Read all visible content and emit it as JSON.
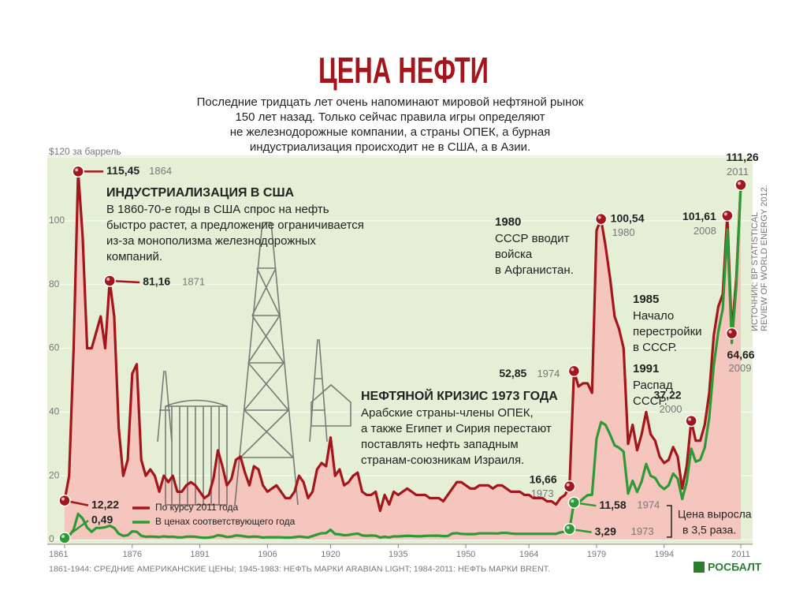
{
  "chart_data": {
    "type": "line",
    "title": "ЦЕНА НЕФТИ",
    "subtitle": [
      "Последние тридцать лет очень напоминают мировой нефтяной рынок",
      "150 лет назад. Только сейчас правила игры определяют",
      "не железнодорожные компании, а страны ОПЕК, а бурная",
      "индустриализация происходит не в США, а в Азии."
    ],
    "xlim": [
      1861,
      2011
    ],
    "xticks": [
      1861,
      1876,
      1891,
      1906,
      1920,
      1935,
      1950,
      1964,
      1979,
      1994,
      2011
    ],
    "ylim": [
      0,
      120
    ],
    "yticks": [
      0,
      20,
      40,
      60,
      80,
      100,
      {
        "value": 120,
        "label": "$120 за баррель"
      }
    ],
    "grid": true,
    "x": [
      1861,
      1862,
      1863,
      1864,
      1865,
      1866,
      1867,
      1868,
      1869,
      1870,
      1871,
      1872,
      1873,
      1874,
      1875,
      1876,
      1877,
      1878,
      1879,
      1880,
      1881,
      1882,
      1883,
      1884,
      1885,
      1886,
      1887,
      1888,
      1889,
      1890,
      1891,
      1892,
      1893,
      1894,
      1895,
      1896,
      1897,
      1898,
      1899,
      1900,
      1901,
      1902,
      1903,
      1904,
      1905,
      1906,
      1907,
      1908,
      1909,
      1910,
      1911,
      1912,
      1913,
      1914,
      1915,
      1916,
      1917,
      1918,
      1919,
      1920,
      1921,
      1922,
      1923,
      1924,
      1925,
      1926,
      1927,
      1928,
      1929,
      1930,
      1931,
      1932,
      1933,
      1934,
      1935,
      1936,
      1937,
      1938,
      1939,
      1940,
      1941,
      1942,
      1943,
      1944,
      1945,
      1946,
      1947,
      1948,
      1949,
      1950,
      1951,
      1952,
      1953,
      1954,
      1955,
      1956,
      1957,
      1958,
      1959,
      1960,
      1961,
      1962,
      1963,
      1964,
      1965,
      1966,
      1967,
      1968,
      1969,
      1970,
      1971,
      1972,
      1973,
      1974,
      1975,
      1976,
      1977,
      1978,
      1979,
      1980,
      1981,
      1982,
      1983,
      1984,
      1985,
      1986,
      1987,
      1988,
      1989,
      1990,
      1991,
      1992,
      1993,
      1994,
      1995,
      1996,
      1997,
      1998,
      1999,
      2000,
      2001,
      2002,
      2003,
      2004,
      2005,
      2006,
      2007,
      2008,
      2009,
      2010,
      2011
    ],
    "series": [
      {
        "name": "По курсу 2011 года",
        "color": "#a3161b",
        "fill": "#f5c6bd",
        "values": [
          12.22,
          20,
          60,
          115.45,
          95,
          60,
          60,
          65,
          70,
          60,
          81.16,
          70,
          35,
          20,
          25,
          52,
          55,
          25,
          20,
          22,
          20,
          15,
          20,
          18,
          20,
          15,
          15,
          17,
          18,
          17,
          15,
          13,
          14,
          19,
          28,
          23,
          17,
          19,
          25,
          26,
          21,
          17,
          23,
          22,
          17,
          15,
          16,
          17,
          15,
          13,
          13,
          15,
          20,
          18,
          13,
          15,
          22,
          24,
          23,
          32,
          20,
          22,
          17,
          18,
          20,
          21,
          15,
          14,
          14,
          15,
          9,
          14,
          11,
          15,
          14,
          15,
          16,
          15,
          14,
          14,
          14,
          13,
          13,
          13,
          12,
          14,
          16,
          18,
          18,
          17,
          16,
          16,
          17,
          17,
          17,
          16,
          17,
          17,
          16,
          15,
          15,
          15,
          14,
          14,
          13,
          13,
          13,
          12,
          12,
          11,
          13,
          14,
          16.66,
          52.85,
          48,
          49,
          49,
          46,
          97,
          100.54,
          92,
          82,
          70,
          66,
          60,
          30,
          36,
          28,
          33,
          40,
          33,
          31,
          26,
          24,
          25,
          29,
          26,
          16,
          23,
          37.22,
          31,
          31,
          36,
          46,
          64,
          73,
          77,
          101.61,
          64.66,
          82,
          111.26
        ],
        "value_labels": [
          "12,22",
          null,
          null,
          "115,45",
          null,
          null,
          null,
          null,
          null,
          null,
          "81,16",
          null,
          null,
          null,
          null,
          null,
          null,
          null,
          null,
          null,
          null,
          null,
          null,
          null,
          null,
          null,
          null,
          null,
          null,
          null,
          null,
          null,
          null,
          null,
          null,
          null,
          null,
          null,
          null,
          null,
          null,
          null,
          null,
          null,
          null,
          null,
          null,
          null,
          null,
          null,
          null,
          null,
          null,
          null,
          null,
          null,
          null,
          null,
          null,
          null,
          null,
          null,
          null,
          null,
          null,
          null,
          null,
          null,
          null,
          null,
          null,
          null,
          null,
          null,
          null,
          null,
          null,
          null,
          null,
          null,
          null,
          null,
          null,
          null,
          null,
          null,
          null,
          null,
          null,
          null,
          null,
          null,
          null,
          null,
          null,
          null,
          null,
          null,
          null,
          null,
          null,
          null,
          null,
          null,
          null,
          null,
          null,
          null,
          null,
          null,
          null,
          null,
          "16,66",
          "52,85",
          null,
          null,
          null,
          null,
          null,
          "100,54",
          null,
          null,
          null,
          null,
          null,
          null,
          null,
          null,
          null,
          null,
          null,
          null,
          null,
          null,
          null,
          null,
          null,
          null,
          null,
          "37,22",
          null,
          null,
          null,
          null,
          null,
          null,
          null,
          "101,61",
          "64,66",
          null,
          "111,26"
        ]
      },
      {
        "name": "В ценах соответствующего года",
        "color": "#2e9a35",
        "values": [
          0.49,
          1.05,
          3.15,
          8.06,
          6.59,
          3.74,
          2.41,
          3.63,
          3.64,
          3.86,
          4.34,
          3.64,
          1.83,
          1.17,
          1.35,
          2.56,
          2.42,
          1.19,
          0.86,
          0.95,
          0.86,
          0.78,
          1.0,
          0.84,
          0.88,
          0.71,
          0.67,
          0.88,
          0.94,
          0.87,
          0.67,
          0.56,
          0.64,
          0.84,
          1.36,
          1.18,
          0.79,
          0.91,
          1.29,
          1.19,
          0.96,
          0.8,
          0.94,
          0.86,
          0.62,
          0.73,
          0.72,
          0.72,
          0.7,
          0.61,
          0.61,
          0.74,
          0.95,
          0.81,
          0.64,
          1.1,
          1.56,
          1.98,
          2.01,
          3.07,
          1.73,
          1.61,
          1.34,
          1.43,
          1.68,
          1.88,
          1.3,
          1.17,
          1.27,
          1.19,
          0.65,
          0.87,
          0.67,
          1.0,
          0.97,
          1.09,
          1.18,
          1.13,
          1.02,
          1.02,
          1.14,
          1.19,
          1.2,
          1.21,
          1.05,
          1.12,
          1.9,
          1.99,
          1.78,
          1.71,
          1.71,
          1.71,
          1.93,
          1.93,
          1.93,
          1.93,
          1.9,
          2.08,
          2.08,
          1.9,
          1.8,
          1.8,
          1.8,
          1.8,
          1.8,
          1.8,
          1.8,
          1.8,
          1.8,
          1.8,
          2.24,
          2.48,
          3.29,
          11.58,
          11.53,
          12.8,
          13.92,
          14.02,
          31.61,
          36.83,
          35.93,
          32.97,
          29.55,
          28.78,
          27.56,
          14.43,
          18.44,
          14.92,
          18.23,
          23.73,
          20.0,
          19.32,
          16.97,
          15.82,
          17.02,
          20.67,
          19.09,
          12.72,
          17.97,
          28.5,
          24.44,
          25.02,
          28.83,
          38.27,
          54.52,
          65.14,
          72.39,
          97.26,
          61.67,
          79.5,
          111.26
        ],
        "value_labels": [
          "0,49",
          null,
          null,
          null,
          null,
          null,
          null,
          null,
          null,
          null,
          null,
          null,
          null,
          null,
          null,
          null,
          null,
          null,
          null,
          null,
          null,
          null,
          null,
          null,
          null,
          null,
          null,
          null,
          null,
          null,
          null,
          null,
          null,
          null,
          null,
          null,
          null,
          null,
          null,
          null,
          null,
          null,
          null,
          null,
          null,
          null,
          null,
          null,
          null,
          null,
          null,
          null,
          null,
          null,
          null,
          null,
          null,
          null,
          null,
          null,
          null,
          null,
          null,
          null,
          null,
          null,
          null,
          null,
          null,
          null,
          null,
          null,
          null,
          null,
          null,
          null,
          null,
          null,
          null,
          null,
          null,
          null,
          null,
          null,
          null,
          null,
          null,
          null,
          null,
          null,
          null,
          null,
          null,
          null,
          null,
          null,
          null,
          null,
          null,
          null,
          null,
          null,
          null,
          null,
          null,
          null,
          null,
          null,
          null,
          null,
          null,
          null,
          "3,29",
          "11,58",
          null,
          null,
          null,
          null,
          null,
          null,
          null,
          null,
          null,
          null,
          null,
          null,
          null,
          null,
          null,
          null,
          null,
          null,
          null,
          null,
          null,
          null,
          null,
          null,
          null,
          null,
          null,
          null,
          null,
          null,
          null,
          null,
          null,
          null,
          null,
          null,
          null
        ]
      }
    ],
    "annotations": [
      {
        "heading": "ИНДУСТРИАЛИЗАЦИЯ В США",
        "lines": [
          "В 1860-70-е годы в США спрос на нефть",
          "быстро растет, а предложение ограничивается",
          "из-за монополизма железнодорожных",
          "компаний."
        ]
      },
      {
        "heading": "НЕФТЯНОЙ КРИЗИС 1973 ГОДА",
        "lines": [
          "Арабские страны-члены ОПЕК,",
          "а также Египет и Сирия перестают",
          "поставлять нефть западным",
          "странам-союзникам Израиля."
        ]
      },
      {
        "heading": "1980",
        "lines": [
          "СССР вводит",
          "войска",
          "в Афганистан."
        ]
      },
      {
        "heading": "1985",
        "lines": [
          "Начало",
          "перестройки",
          "в СССР."
        ]
      },
      {
        "heading": "1991",
        "lines": [
          "Распад",
          "СССР."
        ]
      }
    ],
    "note": [
      "Цена выросла",
      "в 3,5 раза."
    ],
    "source": [
      "ИСТОЧНИК: BP STATISTICAL",
      "REVIEW OF WORLD ENERGY 2012."
    ],
    "footnote": "1861-1944: СРЕДНИЕ АМЕРИКАНСКИЕ ЦЕНЫ; 1945-1983: НЕФТЬ МАРКИ ARABIAN LIGHT; 1984-2011: НЕФТЬ МАРКИ BRENT.",
    "brand": "РОСБАЛТ"
  }
}
